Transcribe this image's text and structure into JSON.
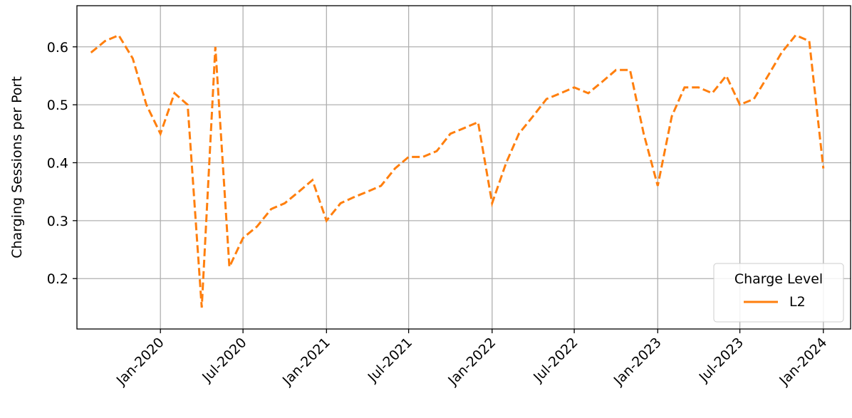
{
  "chart_data": {
    "type": "line",
    "y_label": "Charging Sessions per Port",
    "x": [
      "2019-08",
      "2019-09",
      "2019-10",
      "2019-11",
      "2019-12",
      "2020-01",
      "2020-02",
      "2020-03",
      "2020-04",
      "2020-05",
      "2020-06",
      "2020-07",
      "2020-08",
      "2020-09",
      "2020-10",
      "2020-11",
      "2020-12",
      "2021-01",
      "2021-02",
      "2021-03",
      "2021-04",
      "2021-05",
      "2021-06",
      "2021-07",
      "2021-08",
      "2021-09",
      "2021-10",
      "2021-11",
      "2021-12",
      "2022-01",
      "2022-02",
      "2022-03",
      "2022-04",
      "2022-05",
      "2022-06",
      "2022-07",
      "2022-08",
      "2022-09",
      "2022-10",
      "2022-11",
      "2022-12",
      "2023-01",
      "2023-02",
      "2023-03",
      "2023-04",
      "2023-05",
      "2023-06",
      "2023-07",
      "2023-08",
      "2023-09",
      "2023-10",
      "2023-11",
      "2023-12",
      "2024-01"
    ],
    "series": [
      {
        "name": "L2",
        "color": "#ff7f0e",
        "values": [
          0.59,
          0.61,
          0.62,
          0.58,
          0.5,
          0.45,
          0.52,
          0.5,
          0.15,
          0.6,
          0.22,
          0.27,
          0.29,
          0.32,
          0.33,
          0.35,
          0.37,
          0.3,
          0.33,
          0.34,
          0.35,
          0.36,
          0.39,
          0.41,
          0.41,
          0.42,
          0.45,
          0.46,
          0.47,
          0.33,
          0.4,
          0.45,
          0.48,
          0.51,
          0.52,
          0.53,
          0.52,
          0.54,
          0.56,
          0.56,
          0.45,
          0.36,
          0.48,
          0.53,
          0.53,
          0.52,
          0.55,
          0.5,
          0.51,
          0.55,
          0.59,
          0.62,
          0.61,
          0.39
        ]
      }
    ],
    "xlim": [
      "2019-07",
      "2024-03"
    ],
    "xticks": [
      {
        "value": "2020-01",
        "label": "Jan-2020"
      },
      {
        "value": "2020-07",
        "label": "Jul-2020"
      },
      {
        "value": "2021-01",
        "label": "Jan-2021"
      },
      {
        "value": "2021-07",
        "label": "Jul-2021"
      },
      {
        "value": "2022-01",
        "label": "Jan-2022"
      },
      {
        "value": "2022-07",
        "label": "Jul-2022"
      },
      {
        "value": "2023-01",
        "label": "Jan-2023"
      },
      {
        "value": "2023-07",
        "label": "Jul-2023"
      },
      {
        "value": "2024-01",
        "label": "Jan-2024"
      }
    ],
    "ylim": [
      0.113,
      0.671
    ],
    "yticks": [
      0.2,
      0.3,
      0.4,
      0.5,
      0.6
    ],
    "grid": true,
    "legend_title": "Charge Level",
    "legend_position": "lower right"
  }
}
